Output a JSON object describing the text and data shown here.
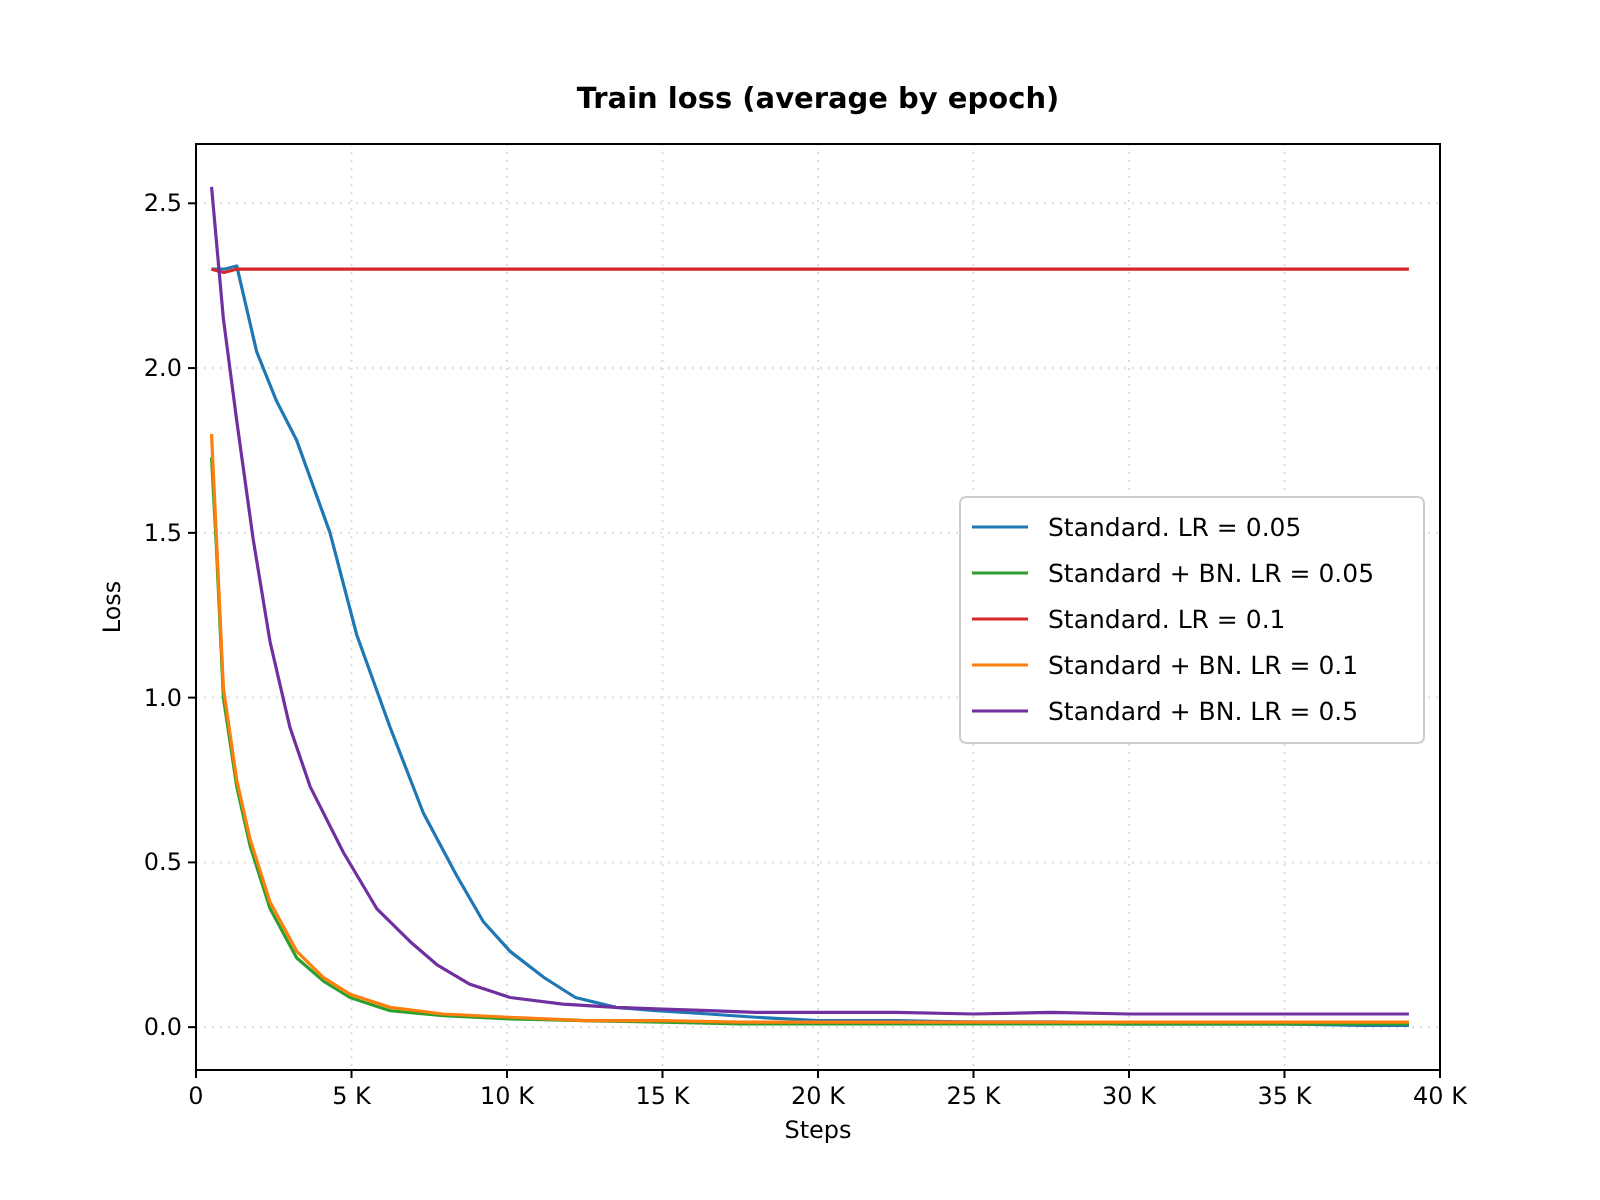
{
  "chart_data": {
    "type": "line",
    "title": "Train loss (average by epoch)",
    "xlabel": "Steps",
    "ylabel": "Loss",
    "xlim": [
      0,
      40000
    ],
    "ylim": [
      -0.13,
      2.68
    ],
    "xticks": [
      {
        "value": 0,
        "label": "0"
      },
      {
        "value": 5000,
        "label": "5 K"
      },
      {
        "value": 10000,
        "label": "10 K"
      },
      {
        "value": 15000,
        "label": "15 K"
      },
      {
        "value": 20000,
        "label": "20 K"
      },
      {
        "value": 25000,
        "label": "25 K"
      },
      {
        "value": 30000,
        "label": "30 K"
      },
      {
        "value": 35000,
        "label": "35 K"
      },
      {
        "value": 40000,
        "label": "40 K"
      }
    ],
    "yticks": [
      {
        "value": 0,
        "label": "0.0"
      },
      {
        "value": 0.5,
        "label": "0.5"
      },
      {
        "value": 1,
        "label": "1.0"
      },
      {
        "value": 1.5,
        "label": "1.5"
      },
      {
        "value": 2,
        "label": "2.0"
      },
      {
        "value": 2.5,
        "label": "2.5"
      }
    ],
    "grid": true,
    "legend": "right",
    "line_style": "solid",
    "series": [
      {
        "name": "Standard. LR = 0.05",
        "color": "#1f77b4",
        "x": [
          500,
          900,
          1310,
          1950,
          2590,
          3240,
          4310,
          5170,
          6240,
          7310,
          8380,
          9240,
          10100,
          11200,
          12200,
          13500,
          14800,
          16500,
          18000,
          20000,
          22500,
          25000,
          27500,
          30000,
          32500,
          35000,
          37500,
          39000
        ],
        "values": [
          2.3,
          2.3,
          2.31,
          2.05,
          1.9,
          1.78,
          1.5,
          1.19,
          0.91,
          0.65,
          0.46,
          0.32,
          0.23,
          0.15,
          0.09,
          0.06,
          0.05,
          0.04,
          0.03,
          0.02,
          0.02,
          0.015,
          0.015,
          0.01,
          0.01,
          0.01,
          0.005,
          0.005
        ]
      },
      {
        "name": "Standard + BN. LR = 0.05",
        "color": "#2ca02c",
        "x": [
          500,
          660,
          880,
          1310,
          1740,
          2380,
          3240,
          4100,
          4950,
          6240,
          7950,
          10100,
          12500,
          15000,
          17500,
          20000,
          22500,
          25000,
          27500,
          30000,
          32500,
          35000,
          37500,
          39000
        ],
        "values": [
          1.73,
          1.45,
          1.0,
          0.73,
          0.55,
          0.36,
          0.21,
          0.14,
          0.09,
          0.05,
          0.035,
          0.025,
          0.02,
          0.015,
          0.01,
          0.01,
          0.01,
          0.01,
          0.01,
          0.01,
          0.01,
          0.01,
          0.01,
          0.01
        ]
      },
      {
        "name": "Standard. LR = 0.1",
        "color": "#d62728",
        "x": [
          500,
          900,
          1300,
          5000,
          10000,
          20000,
          30000,
          39000
        ],
        "values": [
          2.3,
          2.29,
          2.3,
          2.3,
          2.3,
          2.3,
          2.3,
          2.3
        ]
      },
      {
        "name": "Standard + BN. LR = 0.1",
        "color": "#ff7f0e",
        "x": [
          500,
          660,
          880,
          1310,
          1740,
          2380,
          3240,
          4100,
          4950,
          6240,
          7950,
          10100,
          12500,
          15000,
          17500,
          20000,
          22500,
          25000,
          27500,
          30000,
          32500,
          35000,
          37500,
          39000
        ],
        "values": [
          1.8,
          1.48,
          1.03,
          0.75,
          0.57,
          0.38,
          0.23,
          0.15,
          0.1,
          0.06,
          0.04,
          0.03,
          0.02,
          0.02,
          0.015,
          0.015,
          0.015,
          0.015,
          0.015,
          0.015,
          0.015,
          0.015,
          0.015,
          0.015
        ]
      },
      {
        "name": "Standard + BN. LR = 0.5",
        "color": "#7030a0",
        "x": [
          500,
          880,
          1310,
          1840,
          2380,
          3020,
          3670,
          4740,
          5810,
          6880,
          7740,
          8810,
          10100,
          11800,
          13500,
          15000,
          16500,
          18000,
          20000,
          22500,
          25000,
          27500,
          30000,
          32500,
          35000,
          37500,
          39000
        ],
        "values": [
          2.55,
          2.15,
          1.84,
          1.48,
          1.17,
          0.91,
          0.73,
          0.53,
          0.36,
          0.26,
          0.19,
          0.13,
          0.09,
          0.07,
          0.06,
          0.055,
          0.05,
          0.045,
          0.045,
          0.045,
          0.04,
          0.045,
          0.04,
          0.04,
          0.04,
          0.04,
          0.04
        ]
      }
    ]
  }
}
